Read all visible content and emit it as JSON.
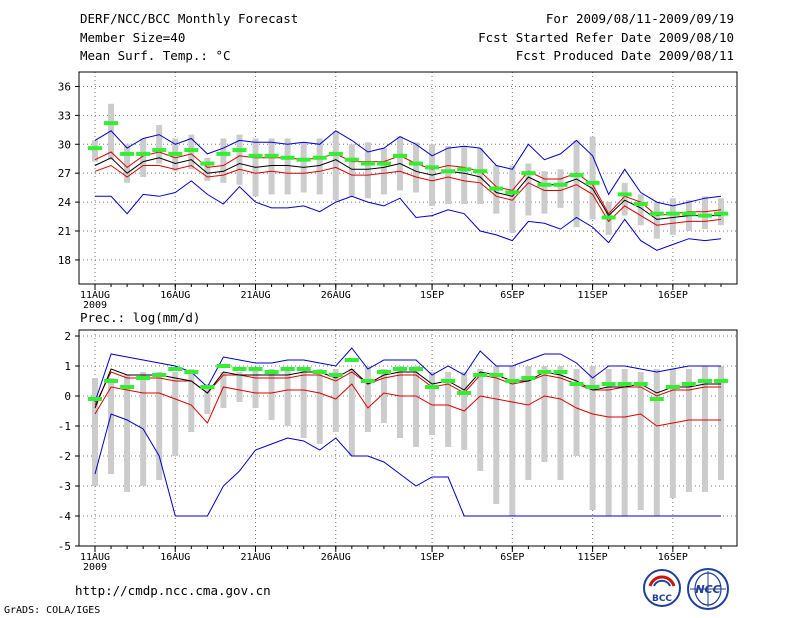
{
  "header": {
    "title": "DERF/NCC/BCC Monthly Forecast",
    "member_size": "Member Size=40",
    "variable_top": "Mean Surf. Temp.: °C",
    "period": "For 2009/08/11-2009/09/19",
    "started": "Fcst Started Refer Date 2009/08/10",
    "produced": "Fcst Produced Date 2009/08/11"
  },
  "footer": {
    "url": "http://cmdp.ncc.cma.gov.cn",
    "credit": "GrADS: COLA/IGES",
    "logo_left": "BCC",
    "logo_right": "NCC"
  },
  "colors": {
    "box": "#cccccc",
    "mean": "#33ee33",
    "median": "#000000",
    "band_inner": "#dd0000",
    "band_outer": "#0000cc",
    "grid": "#777777"
  },
  "chart_data": [
    {
      "type": "line",
      "title": "Mean Surf. Temp.: °C",
      "x_tick_labels": [
        "11AUG",
        "16AUG",
        "21AUG",
        "26AUG",
        "1SEP",
        "6SEP",
        "11SEP",
        "16SEP"
      ],
      "x_tick_index": [
        0,
        5,
        10,
        15,
        21,
        26,
        31,
        36
      ],
      "year_label": "2009",
      "ylim": [
        15.5,
        37.5
      ],
      "y_ticks": [
        18,
        21,
        24,
        27,
        30,
        33,
        36
      ],
      "n_days": 40,
      "series": [
        {
          "name": "box_high",
          "values": [
            30.4,
            34.2,
            30.0,
            30.6,
            32.0,
            30.6,
            31.0,
            28.6,
            30.6,
            31.0,
            30.6,
            30.6,
            30.6,
            30.2,
            30.6,
            31.4,
            30.0,
            30.2,
            29.6,
            30.8,
            30.2,
            30.0,
            29.8,
            29.8,
            29.6,
            27.8,
            27.8,
            28.0,
            27.2,
            27.4,
            30.4,
            30.8,
            24.0,
            26.0,
            24.8,
            24.0,
            24.4,
            24.2,
            24.6,
            24.4
          ]
        },
        {
          "name": "box_low",
          "values": [
            28.2,
            28.4,
            26.0,
            26.6,
            28.0,
            27.2,
            27.4,
            26.2,
            26.0,
            25.8,
            24.6,
            24.8,
            24.8,
            25.0,
            24.8,
            24.2,
            24.6,
            24.4,
            24.8,
            25.2,
            25.0,
            23.6,
            23.8,
            23.8,
            23.8,
            22.8,
            20.8,
            22.6,
            22.8,
            23.4,
            21.4,
            22.2,
            20.6,
            22.6,
            21.6,
            20.2,
            20.6,
            21.0,
            21.2,
            21.6
          ]
        },
        {
          "name": "ensemble_mean",
          "values": [
            29.6,
            32.2,
            29.0,
            29.0,
            29.4,
            29.0,
            29.4,
            28.0,
            29.0,
            29.4,
            28.8,
            28.8,
            28.6,
            28.4,
            28.6,
            29.0,
            28.4,
            28.0,
            28.0,
            28.8,
            28.0,
            27.6,
            27.2,
            27.4,
            27.2,
            25.4,
            25.0,
            27.0,
            25.8,
            25.8,
            26.8,
            26.0,
            22.4,
            24.8,
            23.8,
            22.8,
            22.8,
            22.8,
            22.6,
            22.8
          ]
        },
        {
          "name": "median",
          "values": [
            27.8,
            28.6,
            27.0,
            28.2,
            28.6,
            28.0,
            28.4,
            27.0,
            27.2,
            28.0,
            27.6,
            27.8,
            27.8,
            27.6,
            27.8,
            28.4,
            27.4,
            27.4,
            27.6,
            28.0,
            27.2,
            26.8,
            27.2,
            27.0,
            26.6,
            25.0,
            24.6,
            26.6,
            25.8,
            25.8,
            26.4,
            25.4,
            22.6,
            24.2,
            23.4,
            22.2,
            22.4,
            22.6,
            22.6,
            22.6
          ]
        },
        {
          "name": "inner_high",
          "values": [
            28.4,
            29.2,
            27.6,
            28.8,
            29.2,
            28.6,
            29.0,
            27.6,
            27.8,
            28.8,
            28.6,
            28.6,
            28.6,
            28.4,
            28.6,
            29.0,
            28.2,
            28.2,
            28.2,
            28.8,
            28.0,
            27.4,
            27.8,
            27.6,
            27.2,
            25.6,
            25.2,
            27.2,
            26.4,
            26.4,
            27.0,
            25.8,
            22.8,
            24.6,
            24.0,
            22.6,
            22.8,
            23.0,
            23.0,
            23.2
          ]
        },
        {
          "name": "inner_low",
          "values": [
            27.2,
            27.8,
            26.6,
            27.8,
            27.8,
            27.4,
            27.8,
            26.6,
            26.8,
            27.4,
            27.0,
            27.2,
            27.0,
            27.0,
            27.2,
            27.6,
            26.8,
            26.8,
            27.0,
            27.2,
            26.6,
            26.2,
            26.6,
            26.2,
            26.0,
            24.6,
            24.2,
            26.0,
            25.2,
            25.2,
            25.8,
            24.8,
            22.0,
            23.6,
            22.6,
            21.6,
            21.8,
            22.0,
            22.0,
            22.2
          ]
        },
        {
          "name": "outer_high",
          "values": [
            30.4,
            31.4,
            29.6,
            30.6,
            31.0,
            30.0,
            30.6,
            29.0,
            29.6,
            30.4,
            30.2,
            30.2,
            30.0,
            30.2,
            30.0,
            31.4,
            30.4,
            29.2,
            29.6,
            30.8,
            30.0,
            28.8,
            29.6,
            29.8,
            29.6,
            27.8,
            27.4,
            30.0,
            28.4,
            29.0,
            30.4,
            28.8,
            24.8,
            27.4,
            25.0,
            24.0,
            23.6,
            24.0,
            24.4,
            24.6
          ]
        },
        {
          "name": "outer_low",
          "values": [
            24.6,
            24.6,
            22.8,
            24.8,
            24.6,
            25.0,
            26.2,
            24.8,
            23.8,
            25.6,
            24.0,
            23.4,
            23.4,
            23.6,
            23.0,
            24.0,
            24.6,
            24.0,
            23.6,
            24.4,
            22.4,
            22.6,
            23.2,
            22.8,
            21.0,
            20.6,
            20.0,
            22.0,
            21.8,
            21.2,
            22.4,
            21.4,
            19.8,
            22.2,
            20.0,
            19.0,
            19.6,
            20.2,
            20.0,
            20.2
          ]
        }
      ]
    },
    {
      "type": "line",
      "title": "Prec.: log(mm/d)",
      "x_tick_labels": [
        "11AUG",
        "16AUG",
        "21AUG",
        "26AUG",
        "1SEP",
        "6SEP",
        "11SEP",
        "16SEP"
      ],
      "x_tick_index": [
        0,
        5,
        10,
        15,
        21,
        26,
        31,
        36
      ],
      "year_label": "2009",
      "ylim": [
        -5,
        2.2
      ],
      "y_ticks": [
        -5,
        -4,
        -3,
        -2,
        -1,
        0,
        1,
        2
      ],
      "n_days": 40,
      "series": [
        {
          "name": "box_high",
          "values": [
            0.6,
            0.6,
            0.7,
            0.8,
            0.8,
            0.8,
            0.9,
            0.4,
            0.8,
            0.8,
            0.9,
            0.9,
            0.9,
            0.9,
            0.9,
            0.9,
            0.9,
            1.0,
            0.9,
            1.0,
            1.0,
            0.8,
            0.8,
            0.8,
            0.9,
            1.0,
            1.0,
            1.0,
            1.0,
            1.0,
            0.9,
            1.0,
            0.9,
            0.9,
            0.8,
            0.9,
            0.9,
            0.9,
            1.0,
            1.0
          ]
        },
        {
          "name": "box_low",
          "values": [
            -3.0,
            -2.6,
            -3.2,
            -3.0,
            -2.8,
            -2.0,
            -1.2,
            -0.6,
            -0.4,
            -0.2,
            -0.4,
            -0.8,
            -1.0,
            -1.4,
            -1.6,
            -1.2,
            -2.0,
            -1.2,
            -0.9,
            -1.4,
            -1.7,
            -1.3,
            -1.7,
            -1.8,
            -2.5,
            -3.6,
            -4.0,
            -2.8,
            -2.2,
            -2.8,
            -2.0,
            -3.8,
            -4.0,
            -4.0,
            -3.8,
            -4.0,
            -3.4,
            -3.2,
            -3.2,
            -2.8
          ]
        },
        {
          "name": "ensemble_mean",
          "values": [
            -0.1,
            0.5,
            0.3,
            0.6,
            0.7,
            0.9,
            0.8,
            0.3,
            1.0,
            0.9,
            0.9,
            0.8,
            0.9,
            0.9,
            0.8,
            0.7,
            1.2,
            0.5,
            0.8,
            0.9,
            0.9,
            0.3,
            0.5,
            0.1,
            0.7,
            0.7,
            0.5,
            0.6,
            0.8,
            0.8,
            0.4,
            0.3,
            0.4,
            0.4,
            0.4,
            -0.1,
            0.3,
            0.4,
            0.5,
            0.5
          ]
        },
        {
          "name": "median",
          "values": [
            -0.4,
            0.9,
            0.7,
            0.7,
            0.7,
            0.6,
            0.5,
            0.1,
            0.8,
            0.7,
            0.7,
            0.7,
            0.7,
            0.8,
            0.8,
            0.6,
            0.9,
            0.4,
            0.7,
            0.8,
            0.8,
            0.4,
            0.5,
            0.2,
            0.8,
            0.7,
            0.5,
            0.5,
            0.8,
            0.7,
            0.5,
            0.2,
            0.3,
            0.3,
            0.4,
            0.1,
            0.3,
            0.3,
            0.4,
            0.4
          ]
        },
        {
          "name": "inner_high",
          "values": [
            -0.3,
            0.8,
            0.6,
            0.6,
            0.6,
            0.5,
            0.5,
            0.1,
            0.7,
            0.7,
            0.6,
            0.6,
            0.6,
            0.7,
            0.7,
            0.5,
            0.8,
            0.4,
            0.6,
            0.7,
            0.7,
            0.3,
            0.4,
            0.1,
            0.7,
            0.6,
            0.4,
            0.5,
            0.7,
            0.6,
            0.4,
            0.2,
            0.2,
            0.3,
            0.3,
            0.0,
            0.2,
            0.2,
            0.3,
            0.3
          ]
        },
        {
          "name": "inner_low",
          "values": [
            -0.6,
            0.3,
            0.2,
            0.1,
            0.1,
            -0.1,
            -0.3,
            -0.9,
            0.3,
            0.2,
            0.1,
            0.1,
            0.2,
            0.2,
            0.1,
            -0.1,
            0.4,
            -0.4,
            0.1,
            0.0,
            0.0,
            -0.3,
            -0.3,
            -0.5,
            0.0,
            -0.1,
            -0.2,
            -0.3,
            0.0,
            -0.1,
            -0.4,
            -0.6,
            -0.7,
            -0.7,
            -0.6,
            -1.0,
            -0.9,
            -0.8,
            -0.8,
            -0.8
          ]
        },
        {
          "name": "outer_high",
          "values": [
            -0.2,
            1.4,
            1.3,
            1.2,
            1.1,
            1.0,
            0.8,
            0.3,
            1.3,
            1.2,
            1.1,
            1.1,
            1.2,
            1.2,
            1.1,
            1.0,
            1.6,
            0.9,
            1.2,
            1.2,
            1.2,
            0.7,
            1.0,
            0.7,
            1.5,
            1.0,
            1.0,
            1.2,
            1.4,
            1.4,
            1.1,
            0.6,
            1.0,
            1.0,
            0.9,
            0.8,
            0.9,
            1.0,
            1.0,
            1.0
          ]
        },
        {
          "name": "outer_low",
          "values": [
            -2.6,
            -0.6,
            -0.8,
            -1.1,
            -2.0,
            -4.0,
            -4.0,
            -4.0,
            -3.0,
            -2.5,
            -1.8,
            -1.6,
            -1.4,
            -1.5,
            -1.8,
            -1.4,
            -2.0,
            -2.0,
            -2.2,
            -2.6,
            -3.0,
            -2.7,
            -2.7,
            -4.0,
            -4.0,
            -4.0,
            -4.0,
            -4.0,
            -4.0,
            -4.0,
            -4.0,
            -4.0,
            -4.0,
            -4.0,
            -4.0,
            -4.0,
            -4.0,
            -4.0,
            -4.0,
            -4.0
          ]
        }
      ]
    }
  ]
}
